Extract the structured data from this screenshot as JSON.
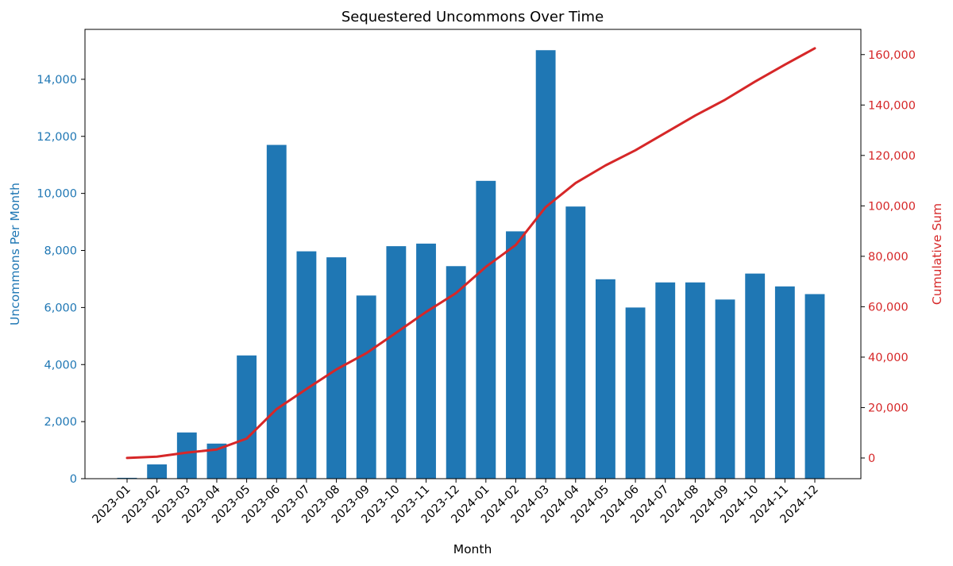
{
  "chart_data": {
    "type": "bar",
    "title": "Sequestered Uncommons Over Time",
    "xlabel": "Month",
    "ylabel_left": "Uncommons Per Month",
    "ylabel_right": "Cumulative Sum",
    "categories": [
      "2023-01",
      "2023-02",
      "2023-03",
      "2023-04",
      "2023-05",
      "2023-06",
      "2023-07",
      "2023-08",
      "2023-09",
      "2023-10",
      "2023-11",
      "2023-12",
      "2024-01",
      "2024-02",
      "2024-03",
      "2024-04",
      "2024-05",
      "2024-06",
      "2024-07",
      "2024-08",
      "2024-09",
      "2024-10",
      "2024-11",
      "2024-12"
    ],
    "ylim_left": [
      0,
      15750
    ],
    "ylim_right": [
      -8200,
      170000
    ],
    "yticks_left": [
      0,
      2000,
      4000,
      6000,
      8000,
      10000,
      12000,
      14000
    ],
    "yticks_right": [
      0,
      20000,
      40000,
      60000,
      80000,
      100000,
      120000,
      140000,
      160000
    ],
    "grid": false,
    "colors": {
      "bars": "#1f77b4",
      "line": "#d62728",
      "left_axis": "#1f77b4",
      "right_axis": "#d62728",
      "text": "#000000"
    },
    "series": [
      {
        "type": "bar",
        "axis": "left",
        "values": [
          30,
          500,
          1620,
          1230,
          4320,
          11700,
          7970,
          7760,
          6420,
          8150,
          8240,
          7450,
          10440,
          8670,
          15020,
          9540,
          6990,
          6000,
          6880,
          6880,
          6280,
          7190,
          6740,
          6470
        ]
      },
      {
        "type": "line",
        "axis": "right",
        "values": [
          30,
          530,
          2150,
          3380,
          7700,
          19400,
          27370,
          35130,
          41550,
          49700,
          57940,
          65390,
          75830,
          84500,
          99520,
          109060,
          116050,
          122050,
          128930,
          135810,
          142090,
          149280,
          156020,
          162490
        ]
      }
    ]
  }
}
